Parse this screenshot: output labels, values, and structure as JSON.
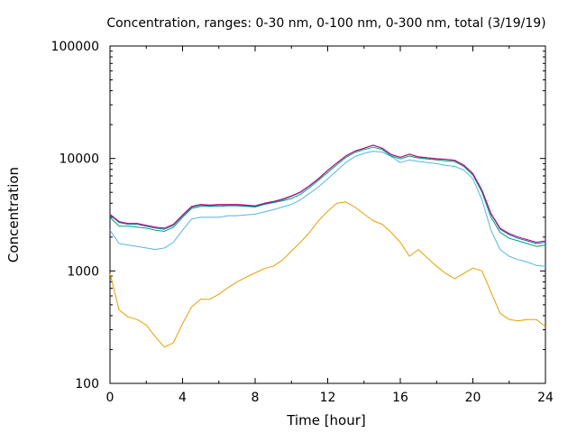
{
  "chart_data": {
    "type": "line",
    "title": "Concentration, ranges: 0-30 nm, 0-100 nm, 0-300 nm, total (3/19/19)",
    "xlabel": "Time [hour]",
    "ylabel": "Concentration",
    "xlim": [
      0,
      24
    ],
    "ylim": [
      100,
      100000
    ],
    "yscale": "log",
    "grid": false,
    "x_ticks": [
      0,
      4,
      8,
      12,
      16,
      20,
      24
    ],
    "x_tick_labels": [
      "0",
      "4",
      "8",
      "12",
      "16",
      "20",
      "24"
    ],
    "y_ticks": [
      100,
      1000,
      10000,
      100000
    ],
    "y_tick_labels": [
      "100",
      "1000",
      "10000",
      "100000"
    ],
    "series": [
      {
        "color": "#e69f00",
        "x": [
          0,
          0.5,
          1,
          1.5,
          2,
          2.5,
          3,
          3.5,
          4,
          4.5,
          5,
          5.5,
          6,
          6.5,
          7,
          7.5,
          8,
          8.5,
          9,
          9.5,
          10,
          10.5,
          11,
          11.5,
          12,
          12.5,
          13,
          13.5,
          14,
          14.5,
          15,
          15.5,
          16,
          16.5,
          17,
          17.5,
          18,
          18.5,
          19,
          19.5,
          20,
          20.5,
          21,
          21.5,
          22,
          22.5,
          23,
          23.5,
          24
        ],
        "y": [
          950,
          450,
          390,
          370,
          330,
          260,
          210,
          230,
          340,
          480,
          560,
          560,
          620,
          710,
          800,
          880,
          960,
          1050,
          1100,
          1250,
          1500,
          1800,
          2200,
          2800,
          3400,
          4000,
          4100,
          3700,
          3200,
          2800,
          2600,
          2200,
          1800,
          1350,
          1550,
          1300,
          1100,
          950,
          850,
          950,
          1060,
          1000,
          650,
          420,
          370,
          360,
          370,
          370,
          320
        ]
      },
      {
        "color": "#56b4e9",
        "x": [
          0,
          0.5,
          1,
          1.5,
          2,
          2.5,
          3,
          3.5,
          4,
          4.5,
          5,
          5.5,
          6,
          6.5,
          7,
          7.5,
          8,
          8.5,
          9,
          9.5,
          10,
          10.5,
          11,
          11.5,
          12,
          12.5,
          13,
          13.5,
          14,
          14.5,
          15,
          15.5,
          16,
          16.5,
          17,
          17.5,
          18,
          18.5,
          19,
          19.5,
          20,
          20.5,
          21,
          21.5,
          22,
          22.5,
          23,
          23.5,
          24
        ],
        "y": [
          2300,
          1750,
          1700,
          1650,
          1600,
          1550,
          1600,
          1800,
          2300,
          2900,
          3000,
          3000,
          3000,
          3100,
          3100,
          3150,
          3200,
          3350,
          3500,
          3700,
          3900,
          4300,
          4900,
          5600,
          6600,
          7800,
          9200,
          10400,
          11100,
          11600,
          11400,
          10400,
          9200,
          9700,
          9400,
          9200,
          9000,
          8700,
          8500,
          7900,
          6600,
          4300,
          2300,
          1550,
          1350,
          1260,
          1200,
          1120,
          1100
        ]
      },
      {
        "color": "#009e73",
        "x": [
          0,
          0.5,
          1,
          1.5,
          2,
          2.5,
          3,
          3.5,
          4,
          4.5,
          5,
          5.5,
          6,
          6.5,
          7,
          7.5,
          8,
          8.5,
          9,
          9.5,
          10,
          10.5,
          11,
          11.5,
          12,
          12.5,
          13,
          13.5,
          14,
          14.5,
          15,
          15.5,
          16,
          16.5,
          17,
          17.5,
          18,
          18.5,
          19,
          19.5,
          20,
          20.5,
          21,
          21.5,
          22,
          22.5,
          23,
          23.5,
          24
        ],
        "y": [
          3000,
          2500,
          2500,
          2450,
          2400,
          2300,
          2250,
          2450,
          3000,
          3600,
          3750,
          3750,
          3750,
          3800,
          3800,
          3750,
          3700,
          3900,
          4050,
          4200,
          4400,
          4800,
          5500,
          6400,
          7500,
          8800,
          10200,
          11300,
          12000,
          12600,
          12000,
          10500,
          9900,
          10500,
          10100,
          9900,
          9700,
          9500,
          9400,
          8500,
          7100,
          5000,
          3000,
          2200,
          1950,
          1850,
          1750,
          1650,
          1700
        ]
      },
      {
        "color": "#0072b2",
        "x": [
          0,
          0.5,
          1,
          1.5,
          2,
          2.5,
          3,
          3.5,
          4,
          4.5,
          5,
          5.5,
          6,
          6.5,
          7,
          7.5,
          8,
          8.5,
          9,
          9.5,
          10,
          10.5,
          11,
          11.5,
          12,
          12.5,
          13,
          13.5,
          14,
          14.5,
          15,
          15.5,
          16,
          16.5,
          17,
          17.5,
          18,
          18.5,
          19,
          19.5,
          20,
          20.5,
          21,
          21.5,
          22,
          22.5,
          23,
          23.5,
          24
        ],
        "y": [
          3150,
          2700,
          2600,
          2600,
          2500,
          2400,
          2350,
          2550,
          3100,
          3700,
          3850,
          3800,
          3850,
          3850,
          3850,
          3800,
          3750,
          3950,
          4100,
          4300,
          4600,
          5000,
          5700,
          6600,
          7800,
          9100,
          10500,
          11600,
          12300,
          13100,
          12300,
          10800,
          10200,
          10900,
          10300,
          10100,
          9900,
          9800,
          9600,
          8700,
          7300,
          5200,
          3200,
          2350,
          2100,
          1950,
          1850,
          1750,
          1800
        ]
      },
      {
        "color": "#cc0077",
        "x": [
          0,
          0.5,
          1,
          1.5,
          2,
          2.5,
          3,
          3.5,
          4,
          4.5,
          5,
          5.5,
          6,
          6.5,
          7,
          7.5,
          8,
          8.5,
          9,
          9.5,
          10,
          10.5,
          11,
          11.5,
          12,
          12.5,
          13,
          13.5,
          14,
          14.5,
          15,
          15.5,
          16,
          16.5,
          17,
          17.5,
          18,
          18.5,
          19,
          19.5,
          20,
          20.5,
          21,
          21.5,
          22,
          22.5,
          23,
          23.5,
          24
        ],
        "y": [
          3200,
          2750,
          2650,
          2650,
          2550,
          2450,
          2400,
          2600,
          3150,
          3750,
          3900,
          3850,
          3900,
          3900,
          3900,
          3850,
          3800,
          4000,
          4150,
          4350,
          4650,
          5050,
          5750,
          6650,
          7850,
          9150,
          10550,
          11650,
          12350,
          13150,
          12350,
          10850,
          10250,
          10950,
          10350,
          10150,
          9950,
          9850,
          9650,
          8750,
          7350,
          5250,
          3250,
          2400,
          2150,
          2000,
          1900,
          1800,
          1850
        ]
      }
    ]
  }
}
